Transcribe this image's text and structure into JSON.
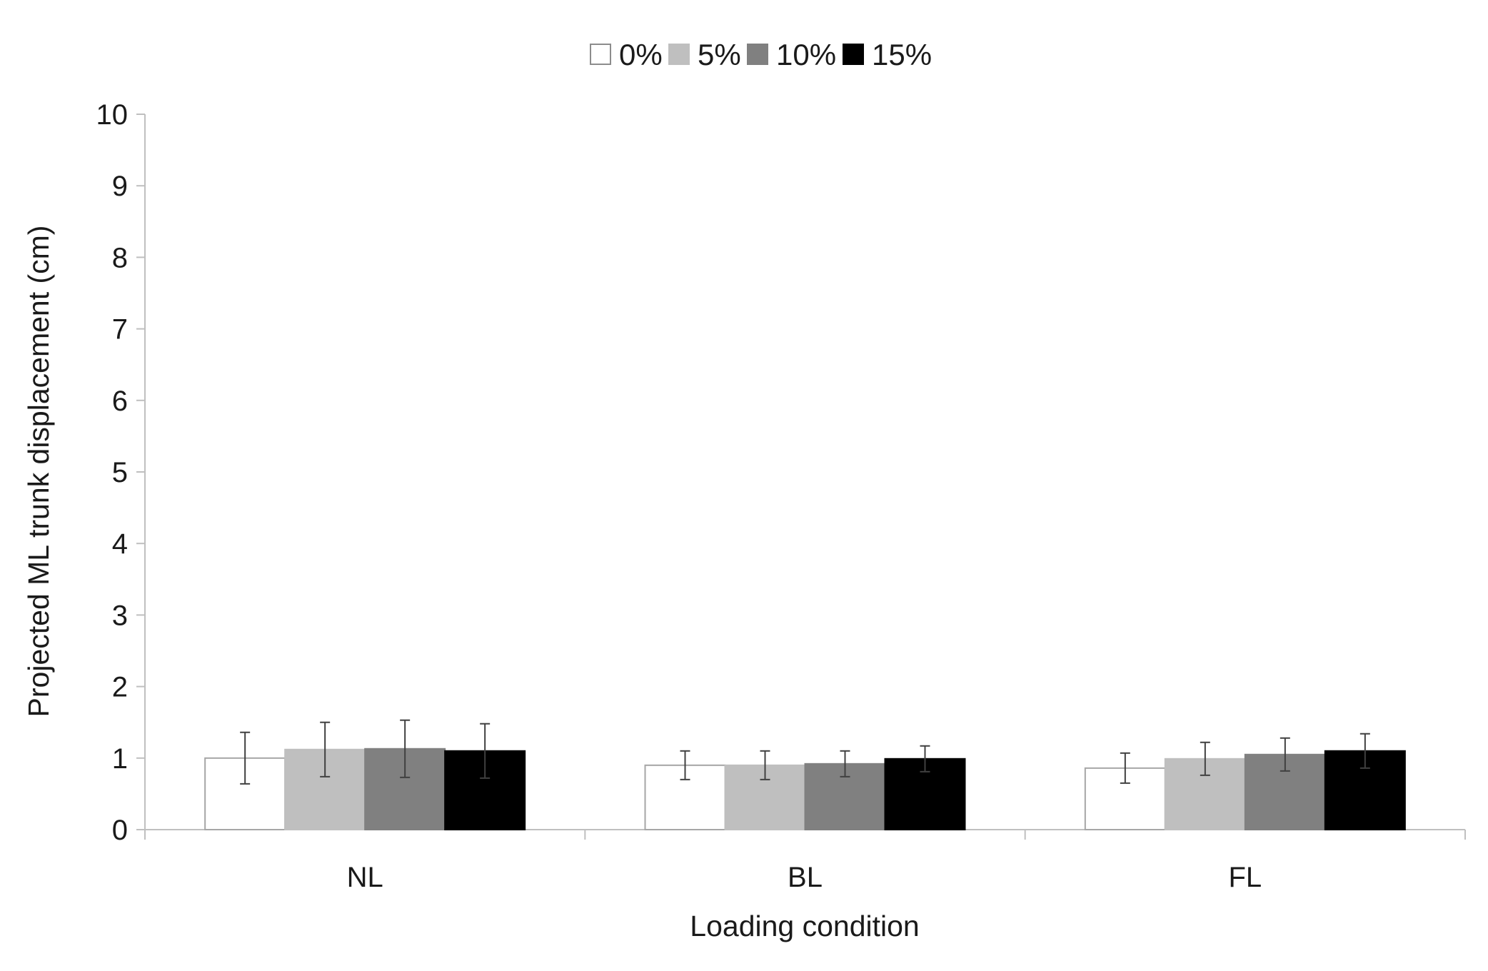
{
  "chart_data": {
    "type": "bar",
    "title": "",
    "xlabel": "Loading condition",
    "ylabel": "Projected ML trunk displacement (cm)",
    "ylim": [
      0,
      10
    ],
    "yticks": [
      0,
      1,
      2,
      3,
      4,
      5,
      6,
      7,
      8,
      9,
      10
    ],
    "grid": false,
    "legend_position": "top-center",
    "categories": [
      "NL",
      "BL",
      "FL"
    ],
    "series": [
      {
        "name": "0%",
        "color": "#ffffff",
        "values": [
          1.0,
          0.9,
          0.86
        ],
        "errors": [
          0.36,
          0.2,
          0.21
        ]
      },
      {
        "name": "5%",
        "color": "#bfbfbf",
        "values": [
          1.12,
          0.9,
          0.99
        ],
        "errors": [
          0.38,
          0.2,
          0.23
        ]
      },
      {
        "name": "10%",
        "color": "#808080",
        "values": [
          1.13,
          0.92,
          1.05
        ],
        "errors": [
          0.4,
          0.18,
          0.23
        ]
      },
      {
        "name": "15%",
        "color": "#000000",
        "values": [
          1.1,
          0.99,
          1.1
        ],
        "errors": [
          0.38,
          0.18,
          0.24
        ]
      }
    ]
  }
}
